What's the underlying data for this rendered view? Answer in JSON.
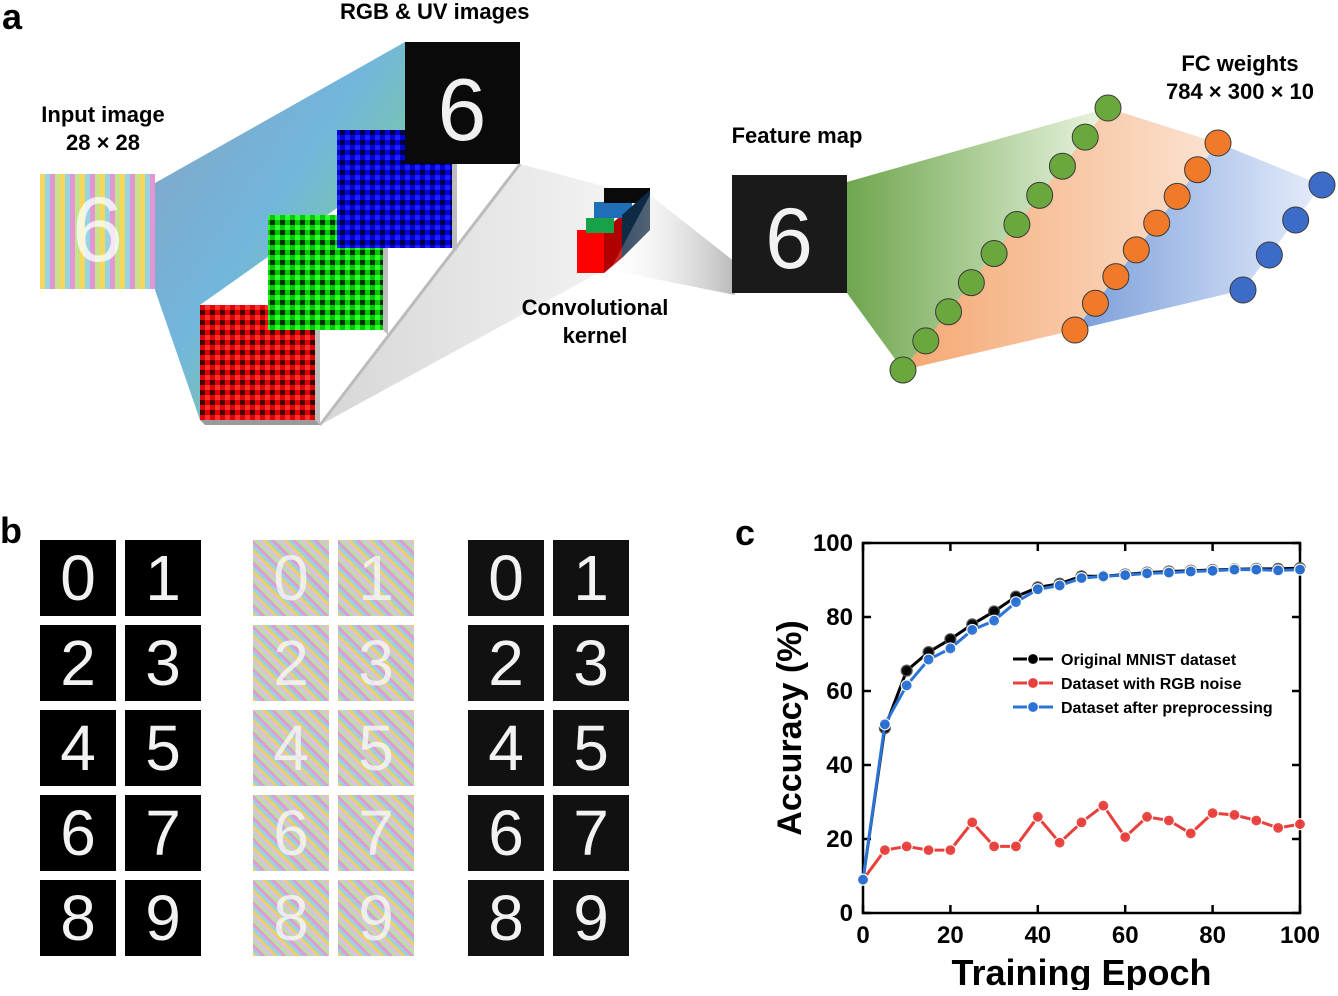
{
  "panel_a": {
    "letter": "a",
    "input_label": "Input image",
    "input_size": "28 × 28",
    "channels_label": "RGB & UV images",
    "kernel_label_1": "Convolutional",
    "kernel_label_2": "kernel",
    "feature_label": "Feature map",
    "fc_label": "FC weights",
    "fc_size": "784 × 300 × 10",
    "digit": "6",
    "colors": {
      "red_channel": "#e00000",
      "green_channel": "#00c800",
      "blue_channel": "#0000d8",
      "layer1_node": "#6aa83e",
      "layer2_node": "#f07a2a",
      "layer3_node": "#3d6cc8"
    }
  },
  "panel_b": {
    "letter": "b",
    "digits": [
      "0",
      "1",
      "2",
      "3",
      "4",
      "5",
      "6",
      "7",
      "8",
      "9"
    ]
  },
  "panel_c": {
    "letter": "c"
  },
  "chart_data": {
    "type": "line",
    "title": "",
    "xlabel": "Training Epoch",
    "ylabel": "Accuracy (%)",
    "xlim": [
      0,
      100
    ],
    "ylim": [
      0,
      100
    ],
    "xticks": [
      "0",
      "20",
      "40",
      "60",
      "80",
      "100"
    ],
    "yticks": [
      "0",
      "20",
      "40",
      "60",
      "80",
      "100"
    ],
    "legend_position": "center-right",
    "x": [
      0,
      5,
      10,
      15,
      20,
      25,
      30,
      35,
      40,
      45,
      50,
      55,
      60,
      65,
      70,
      75,
      80,
      85,
      90,
      95,
      100
    ],
    "series": [
      {
        "name": "Original MNIST dataset",
        "color": "#000000",
        "values": [
          9,
          50,
          65.5,
          70.5,
          74,
          78,
          81.5,
          85.5,
          88,
          89,
          91,
          91,
          91.5,
          92,
          92.3,
          92.5,
          92.7,
          92.9,
          93,
          93,
          93.2
        ]
      },
      {
        "name": "Dataset with RGB noise",
        "color": "#e8403c",
        "values": [
          9,
          17,
          18,
          17,
          17,
          24.5,
          18,
          18,
          26,
          19,
          24.5,
          29,
          20.5,
          26,
          25,
          21.5,
          27,
          26.5,
          25,
          23,
          24
        ]
      },
      {
        "name": "Dataset after preprocessing",
        "color": "#2b73d6",
        "values": [
          9,
          51,
          61.5,
          68.5,
          71.5,
          76.5,
          79,
          84,
          87.5,
          88.5,
          90.5,
          91,
          91.3,
          91.8,
          92,
          92.3,
          92.5,
          92.8,
          92.8,
          92.6,
          92.8
        ]
      }
    ]
  }
}
